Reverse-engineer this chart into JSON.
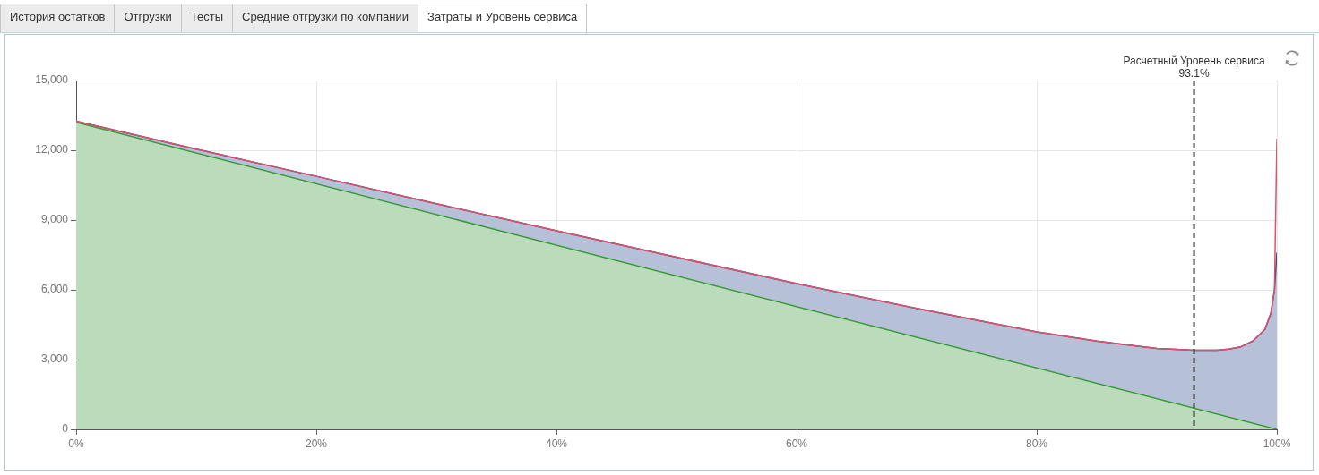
{
  "chart_data": {
    "type": "area",
    "annotations": [
      "История остатков",
      "Отгрузки",
      "Тесты",
      "Средние отгрузки по компании",
      "Затраты и Уровень сервиса"
    ],
    "series": [
      {
        "color": "#2d4c8a",
        "x": [
          0,
          10,
          20,
          30,
          40,
          50,
          60,
          70,
          80,
          85,
          90,
          93.1,
          95,
          96,
          97,
          98,
          99,
          99.5,
          99.8,
          100
        ],
        "values": [
          13250,
          12050,
          10880,
          9700,
          8540,
          7400,
          6270,
          5200,
          4190,
          3800,
          3480,
          3400,
          3400,
          3450,
          3550,
          3800,
          4300,
          5000,
          6000,
          7600
        ]
      },
      {
        "color": "#3a9a3a",
        "x": [
          0,
          100
        ],
        "values": [
          13200,
          0
        ]
      },
      {
        "type": "line",
        "color": "#e0506a",
        "x": [
          0,
          10,
          20,
          30,
          40,
          50,
          60,
          70,
          80,
          85,
          90,
          93.1,
          95,
          96,
          97,
          98,
          99,
          99.5,
          99.8,
          100
        ],
        "values": [
          13250,
          12050,
          10880,
          9700,
          8540,
          7400,
          6270,
          5200,
          4190,
          3800,
          3480,
          3400,
          3400,
          3450,
          3550,
          3800,
          4300,
          5000,
          6000,
          12500
        ]
      }
    ],
    "xlim": [
      0,
      100
    ],
    "xticks": [
      {
        "value": 0,
        "label": "0%"
      },
      {
        "value": 20,
        "label": "20%"
      },
      {
        "value": 40,
        "label": "40%"
      },
      {
        "value": 60,
        "label": "60%"
      },
      {
        "value": 80,
        "label": "80%"
      },
      {
        "value": 100,
        "label": "100%"
      }
    ],
    "ylim": [
      0,
      15000
    ],
    "yticks": [
      {
        "value": 0,
        "label": "0"
      },
      {
        "value": 3000,
        "label": "3,000"
      },
      {
        "value": 6000,
        "label": "6,000"
      },
      {
        "value": 9000,
        "label": "9,000"
      },
      {
        "value": 12000,
        "label": "12,000"
      },
      {
        "value": 15000,
        "label": "15,000"
      }
    ],
    "ref_lines": [
      {
        "axis": "x",
        "value": 93.1,
        "label": "Расчетный Уровень сервиса\n93.1%",
        "color": "#333333",
        "line_style": "dashed"
      }
    ],
    "grid": true,
    "legend": false,
    "marker": "none"
  }
}
